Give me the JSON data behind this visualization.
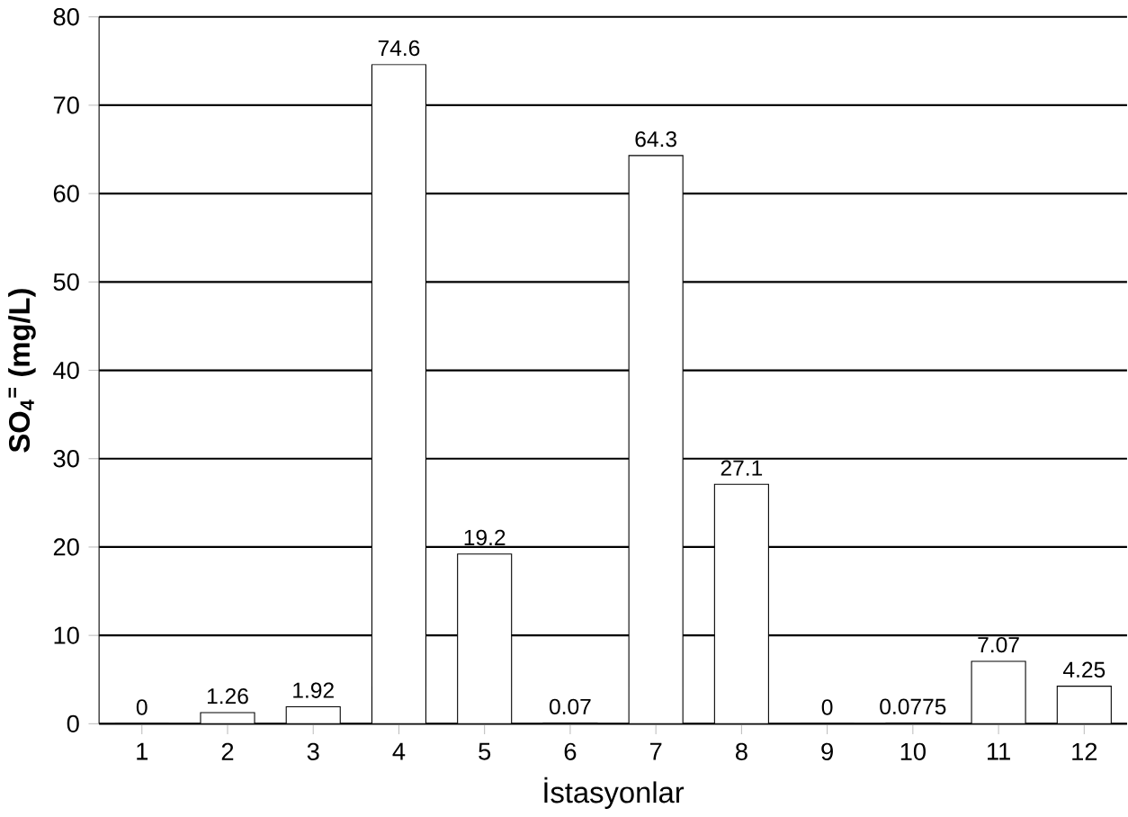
{
  "chart_data": {
    "type": "bar",
    "xlabel": "İstasyonlar",
    "ylabel": "SO$_{4}$$^{=}$ (mg/L)",
    "categories": [
      "1",
      "2",
      "3",
      "4",
      "5",
      "6",
      "7",
      "8",
      "9",
      "10",
      "11",
      "12"
    ],
    "values": [
      0,
      1.26,
      1.92,
      74.6,
      19.2,
      0.07,
      64.3,
      27.1,
      0,
      0.0775,
      7.07,
      4.25
    ],
    "color": "#ffffff",
    "ylim": [
      0,
      80
    ],
    "yticks": [
      0,
      10,
      20,
      30,
      40,
      50,
      60,
      70,
      80
    ],
    "grid": "y",
    "data_labels": true
  }
}
